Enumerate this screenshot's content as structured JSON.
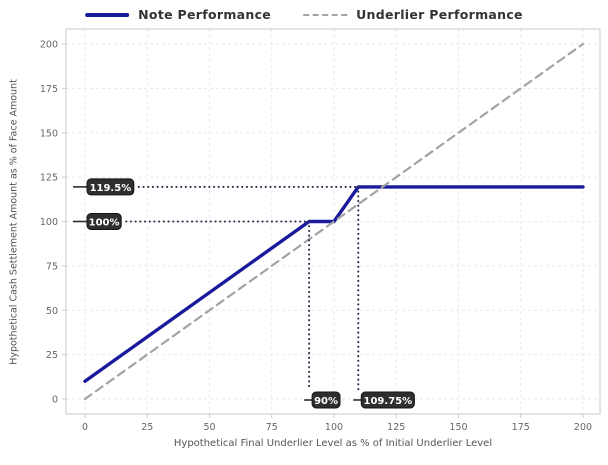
{
  "legend": {
    "items": [
      {
        "label": "Note Performance",
        "swatch": "solid-navy"
      },
      {
        "label": "Underlier Performance",
        "swatch": "dashed-gray"
      }
    ]
  },
  "chart_data": {
    "type": "line",
    "title": "",
    "xlabel": "Hypothetical Final Underlier Level as % of Initial Underlier Level",
    "ylabel": "Hypothetical Cash Settlement Amount as % of Face Amount",
    "xticks": [
      0,
      25,
      50,
      75,
      100,
      125,
      150,
      175,
      200
    ],
    "yticks": [
      0,
      25,
      50,
      75,
      100,
      125,
      150,
      175,
      200
    ],
    "xlim": [
      -8,
      207
    ],
    "ylim": [
      -9,
      208
    ],
    "grid": true,
    "legend_position": "top-center",
    "series": [
      {
        "name": "Note Performance",
        "color": "#1a1a9c",
        "style": "solid",
        "width": 3.4,
        "points": [
          [
            0,
            10
          ],
          [
            90,
            100
          ],
          [
            100,
            100
          ],
          [
            109.75,
            119.5
          ],
          [
            200,
            119.5
          ]
        ]
      },
      {
        "name": "Underlier Performance",
        "color": "#a3a3a3",
        "style": "dashed",
        "width": 2.2,
        "points": [
          [
            0,
            0
          ],
          [
            200,
            200
          ]
        ]
      }
    ],
    "annotations": [
      {
        "label": "119.5%",
        "type": "hline",
        "value": 119.5,
        "to_x": 109.75
      },
      {
        "label": "100%",
        "type": "hline",
        "value": 100,
        "to_x": 90
      },
      {
        "label": "90%",
        "type": "vline",
        "value": 90,
        "to_y": 100
      },
      {
        "label": "109.75%",
        "type": "vline",
        "value": 109.75,
        "to_y": 119.5
      }
    ],
    "colors": {
      "grid": "#eaeaea",
      "spine": "#c9c9d1",
      "tick_label": "#666666",
      "axis_label": "#555555",
      "annotation_bg": "#2e2e2e",
      "annotation_border": "#151515",
      "annotation_text": "#ffffff",
      "annotation_line": "#2d2d4d",
      "legend_text": "#333333"
    }
  }
}
